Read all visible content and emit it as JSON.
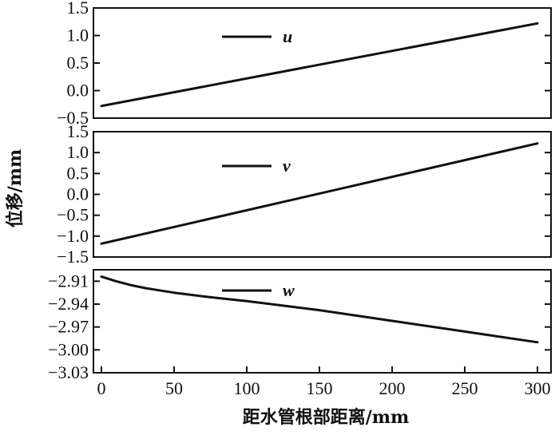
{
  "chart_data": {
    "type": "line",
    "xlabel": "距水管根部距离/mm",
    "ylabel": "位移/mm",
    "xlim": [
      0,
      300
    ],
    "x_ticks": [
      "0",
      "50",
      "100",
      "150",
      "200",
      "250",
      "300"
    ],
    "grid": false,
    "panels": [
      {
        "series": [
          {
            "name": "u",
            "x": [
              0,
              300
            ],
            "y": [
              -0.28,
              1.22
            ]
          }
        ],
        "ylim": [
          -0.5,
          1.5
        ],
        "y_ticks": [
          "1.5",
          "1.0",
          "0.5",
          "0.0",
          "−0.5"
        ],
        "legend_position": "top-center"
      },
      {
        "series": [
          {
            "name": "v",
            "x": [
              0,
              300
            ],
            "y": [
              -1.18,
              1.22
            ]
          }
        ],
        "ylim": [
          -1.5,
          1.5
        ],
        "y_ticks": [
          "1.5",
          "1.0",
          "0.5",
          "0.0",
          "−0.5",
          "−1.0",
          "−1.5"
        ],
        "legend_position": "top-center"
      },
      {
        "series": [
          {
            "name": "w",
            "x": [
              0,
              10,
              20,
              30,
              40,
              50,
              75,
              100,
              150,
              200,
              250,
              300
            ],
            "y": [
              -2.904,
              -2.91,
              -2.915,
              -2.919,
              -2.922,
              -2.925,
              -2.931,
              -2.936,
              -2.948,
              -2.962,
              -2.976,
              -2.99
            ]
          }
        ],
        "ylim": [
          -3.03,
          -2.895
        ],
        "y_ticks": [
          "−2.91",
          "−2.94",
          "−2.97",
          "−3.00",
          "−3.03"
        ],
        "legend_position": "top-center"
      }
    ]
  }
}
